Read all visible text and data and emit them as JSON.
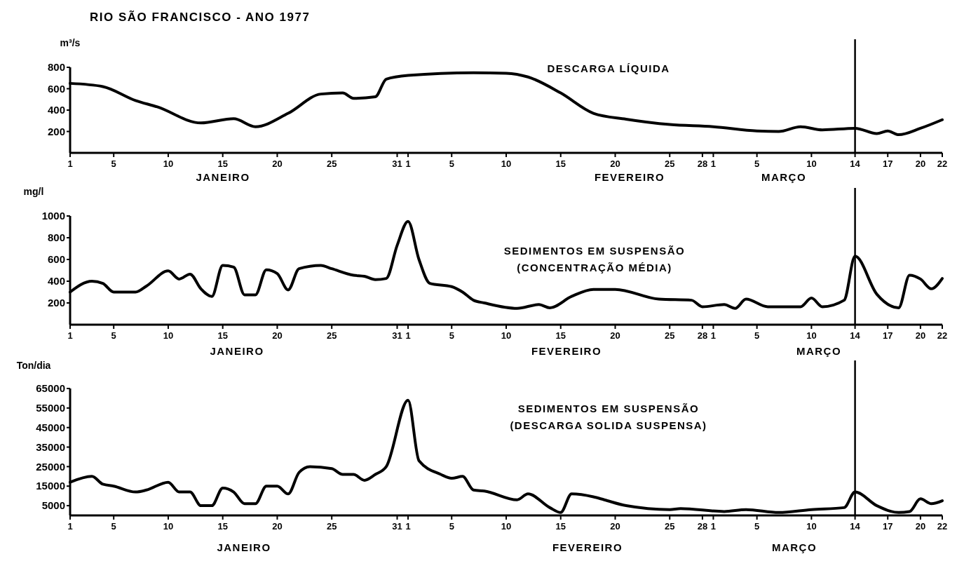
{
  "chart_data": [
    {
      "type": "line",
      "title": "RIO SÃO FRANCISCO - ANO 1977",
      "subtitle": "DESCARGA LÍQUIDA",
      "ylabel": "m³/s",
      "xlim": [
        "1977-01-01",
        "1977-03-22"
      ],
      "ylim": [
        0,
        800
      ],
      "yticks": [
        200,
        400,
        600,
        800
      ],
      "xticks": [
        {
          "value": "1977-01-01",
          "label": "1"
        },
        {
          "value": "1977-01-05",
          "label": "5"
        },
        {
          "value": "1977-01-10",
          "label": "10"
        },
        {
          "value": "1977-01-15",
          "label": "15"
        },
        {
          "value": "1977-01-20",
          "label": "20"
        },
        {
          "value": "1977-01-25",
          "label": "25"
        },
        {
          "value": "1977-01-31",
          "label": "31"
        },
        {
          "value": "1977-02-01",
          "label": "1"
        },
        {
          "value": "1977-02-05",
          "label": "5"
        },
        {
          "value": "1977-02-10",
          "label": "10"
        },
        {
          "value": "1977-02-15",
          "label": "15"
        },
        {
          "value": "1977-02-20",
          "label": "20"
        },
        {
          "value": "1977-02-25",
          "label": "25"
        },
        {
          "value": "1977-02-28",
          "label": "28"
        },
        {
          "value": "1977-03-01",
          "label": "1"
        },
        {
          "value": "1977-03-05",
          "label": "5"
        },
        {
          "value": "1977-03-10",
          "label": "10"
        },
        {
          "value": "1977-03-14",
          "label": "14"
        },
        {
          "value": "1977-03-17",
          "label": "17"
        },
        {
          "value": "1977-03-20",
          "label": "20"
        },
        {
          "value": "1977-03-22",
          "label": "22"
        }
      ],
      "annotations": [
        "JANEIRO",
        "FEVEREIRO",
        "MARÇO"
      ],
      "ref_lines": [
        {
          "axis": "x",
          "value": "1977-03-14"
        }
      ],
      "series": [
        {
          "color": "#000000",
          "x": [
            "1977-01-01",
            "1977-01-04",
            "1977-01-07",
            "1977-01-09",
            "1977-01-13",
            "1977-01-16",
            "1977-01-18",
            "1977-01-21",
            "1977-01-24",
            "1977-01-26",
            "1977-01-27",
            "1977-01-29",
            "1977-01-30",
            "1977-02-01",
            "1977-02-07",
            "1977-02-10",
            "1977-02-12",
            "1977-02-15",
            "1977-02-18",
            "1977-02-21",
            "1977-02-25",
            "1977-03-01",
            "1977-03-05",
            "1977-03-07",
            "1977-03-09",
            "1977-03-11",
            "1977-03-14",
            "1977-03-16",
            "1977-03-17",
            "1977-03-18",
            "1977-03-20",
            "1977-03-22"
          ],
          "values": [
            650,
            620,
            490,
            430,
            280,
            320,
            245,
            370,
            550,
            560,
            510,
            525,
            690,
            725,
            750,
            745,
            710,
            560,
            370,
            315,
            265,
            245,
            205,
            200,
            245,
            215,
            230,
            180,
            205,
            170,
            230,
            310
          ]
        }
      ]
    },
    {
      "type": "line",
      "subtitle": "SEDIMENTOS EM SUSPENSÃO\n(CONCENTRAÇÃO MÉDIA)",
      "ylabel": "mg/l",
      "xlim": [
        "1977-01-01",
        "1977-03-22"
      ],
      "ylim": [
        0,
        1000
      ],
      "yticks": [
        200,
        400,
        600,
        800,
        1000
      ],
      "xticks": [
        {
          "value": "1977-01-01",
          "label": "1"
        },
        {
          "value": "1977-01-05",
          "label": "5"
        },
        {
          "value": "1977-01-10",
          "label": "10"
        },
        {
          "value": "1977-01-15",
          "label": "15"
        },
        {
          "value": "1977-01-20",
          "label": "20"
        },
        {
          "value": "1977-01-25",
          "label": "25"
        },
        {
          "value": "1977-01-31",
          "label": "31"
        },
        {
          "value": "1977-02-01",
          "label": "1"
        },
        {
          "value": "1977-02-05",
          "label": "5"
        },
        {
          "value": "1977-02-10",
          "label": "10"
        },
        {
          "value": "1977-02-15",
          "label": "15"
        },
        {
          "value": "1977-02-20",
          "label": "20"
        },
        {
          "value": "1977-02-25",
          "label": "25"
        },
        {
          "value": "1977-02-28",
          "label": "28"
        },
        {
          "value": "1977-03-01",
          "label": "1"
        },
        {
          "value": "1977-03-05",
          "label": "5"
        },
        {
          "value": "1977-03-10",
          "label": "10"
        },
        {
          "value": "1977-03-14",
          "label": "14"
        },
        {
          "value": "1977-03-17",
          "label": "17"
        },
        {
          "value": "1977-03-20",
          "label": "20"
        },
        {
          "value": "1977-03-22",
          "label": "22"
        }
      ],
      "annotations": [
        "JANEIRO",
        "FEVEREIRO",
        "MARÇO"
      ],
      "ref_lines": [
        {
          "axis": "x",
          "value": "1977-03-14"
        }
      ],
      "series": [
        {
          "color": "#000000",
          "x": [
            "1977-01-01",
            "1977-01-03",
            "1977-01-04",
            "1977-01-05",
            "1977-01-07",
            "1977-01-08",
            "1977-01-10",
            "1977-01-11",
            "1977-01-12",
            "1977-01-13",
            "1977-01-14",
            "1977-01-15",
            "1977-01-16",
            "1977-01-17",
            "1977-01-18",
            "1977-01-19",
            "1977-01-20",
            "1977-01-21",
            "1977-01-22",
            "1977-01-24",
            "1977-01-25",
            "1977-01-27",
            "1977-01-28",
            "1977-01-29",
            "1977-01-30",
            "1977-01-31",
            "1977-02-01",
            "1977-02-02",
            "1977-02-03",
            "1977-02-05",
            "1977-02-06",
            "1977-02-07",
            "1977-02-08",
            "1977-02-11",
            "1977-02-13",
            "1977-02-14",
            "1977-02-16",
            "1977-02-18",
            "1977-02-20",
            "1977-02-24",
            "1977-02-27",
            "1977-02-28",
            "1977-03-02",
            "1977-03-03",
            "1977-03-04",
            "1977-03-06",
            "1977-03-09",
            "1977-03-10",
            "1977-03-11",
            "1977-03-13",
            "1977-03-14",
            "1977-03-16",
            "1977-03-18",
            "1977-03-19",
            "1977-03-20",
            "1977-03-21",
            "1977-03-22"
          ],
          "values": [
            300,
            400,
            380,
            300,
            300,
            355,
            495,
            420,
            465,
            330,
            260,
            545,
            530,
            275,
            275,
            505,
            470,
            320,
            515,
            545,
            515,
            455,
            445,
            415,
            425,
            730,
            950,
            600,
            380,
            350,
            300,
            225,
            200,
            150,
            185,
            155,
            260,
            325,
            325,
            235,
            225,
            165,
            185,
            150,
            235,
            165,
            165,
            245,
            165,
            225,
            630,
            280,
            155,
            455,
            420,
            330,
            425
          ]
        }
      ]
    },
    {
      "type": "line",
      "subtitle": "SEDIMENTOS EM SUSPENSÃO\n(DESCARGA SOLIDA SUSPENSA)",
      "ylabel": "Ton/dia",
      "xlim": [
        "1977-01-01",
        "1977-03-22"
      ],
      "ylim": [
        0,
        65000
      ],
      "yticks": [
        5000,
        15000,
        25000,
        35000,
        45000,
        55000,
        65000
      ],
      "xticks": [
        {
          "value": "1977-01-01",
          "label": "1"
        },
        {
          "value": "1977-01-05",
          "label": "5"
        },
        {
          "value": "1977-01-10",
          "label": "10"
        },
        {
          "value": "1977-01-15",
          "label": "15"
        },
        {
          "value": "1977-01-20",
          "label": "20"
        },
        {
          "value": "1977-01-25",
          "label": "25"
        },
        {
          "value": "1977-01-31",
          "label": "31"
        },
        {
          "value": "1977-02-01",
          "label": "1"
        },
        {
          "value": "1977-02-05",
          "label": "5"
        },
        {
          "value": "1977-02-10",
          "label": "10"
        },
        {
          "value": "1977-02-15",
          "label": "15"
        },
        {
          "value": "1977-02-20",
          "label": "20"
        },
        {
          "value": "1977-02-25",
          "label": "25"
        },
        {
          "value": "1977-02-28",
          "label": "28"
        },
        {
          "value": "1977-03-01",
          "label": "1"
        },
        {
          "value": "1977-03-05",
          "label": "5"
        },
        {
          "value": "1977-03-10",
          "label": "10"
        },
        {
          "value": "1977-03-14",
          "label": "14"
        },
        {
          "value": "1977-03-17",
          "label": "17"
        },
        {
          "value": "1977-03-20",
          "label": "20"
        },
        {
          "value": "1977-03-22",
          "label": "22"
        }
      ],
      "annotations": [
        "JANEIRO",
        "FEVEREIRO",
        "MARÇO"
      ],
      "ref_lines": [
        {
          "axis": "x",
          "value": "1977-03-14"
        }
      ],
      "series": [
        {
          "color": "#000000",
          "x": [
            "1977-01-01",
            "1977-01-03",
            "1977-01-04",
            "1977-01-05",
            "1977-01-07",
            "1977-01-08",
            "1977-01-10",
            "1977-01-11",
            "1977-01-12",
            "1977-01-13",
            "1977-01-14",
            "1977-01-15",
            "1977-01-16",
            "1977-01-17",
            "1977-01-18",
            "1977-01-19",
            "1977-01-20",
            "1977-01-21",
            "1977-01-22",
            "1977-01-23",
            "1977-01-25",
            "1977-01-26",
            "1977-01-27",
            "1977-01-28",
            "1977-01-29",
            "1977-01-30",
            "1977-02-01",
            "1977-02-02",
            "1977-02-04",
            "1977-02-05",
            "1977-02-06",
            "1977-02-07",
            "1977-02-08",
            "1977-02-11",
            "1977-02-12",
            "1977-02-14",
            "1977-02-15",
            "1977-02-16",
            "1977-02-18",
            "1977-02-19",
            "1977-02-21",
            "1977-02-25",
            "1977-02-26",
            "1977-03-02",
            "1977-03-04",
            "1977-03-07",
            "1977-03-10",
            "1977-03-13",
            "1977-03-14",
            "1977-03-16",
            "1977-03-18",
            "1977-03-19",
            "1977-03-20",
            "1977-03-21",
            "1977-03-22"
          ],
          "values": [
            17000,
            20000,
            16000,
            15000,
            12000,
            13000,
            17000,
            12000,
            12000,
            5000,
            5000,
            14000,
            12000,
            6000,
            6000,
            15000,
            15000,
            11000,
            22000,
            25000,
            24000,
            21000,
            21000,
            18000,
            21000,
            25000,
            59000,
            28000,
            21000,
            19000,
            20000,
            13000,
            12500,
            8000,
            11000,
            4000,
            1500,
            11000,
            9500,
            8000,
            5000,
            3000,
            3500,
            2000,
            3000,
            1500,
            3000,
            4000,
            12000,
            5000,
            1500,
            2000,
            8500,
            6000,
            7500
          ]
        }
      ]
    }
  ]
}
